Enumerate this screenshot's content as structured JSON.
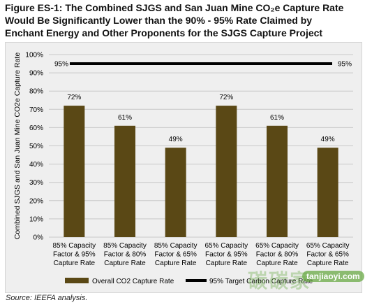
{
  "title_lines": [
    "Figure ES-1: The Combined SJGS and San Juan Mine CO₂e Capture Rate",
    "Would Be Significantly Lower than the 90% - 95% Rate Claimed by",
    "Enchant Energy and Other Proponents for the SJGS Capture Project"
  ],
  "source": "Source: IEEFA analysis.",
  "watermark": {
    "text": "碳碳家",
    "url": "tanjiaoyi.com"
  },
  "colors": {
    "bar": "#5a4815",
    "target_line": "#000000",
    "grid": "#c8c8c8",
    "background": "#efefef"
  },
  "chart_data": {
    "type": "bar",
    "categories": [
      [
        "85% Capacity",
        "Factor & 95%",
        "Capture Rate"
      ],
      [
        "85% Capacity",
        "Factor & 80%",
        "Capture Rate"
      ],
      [
        "85% Capacity",
        "Factor & 65%",
        "Capture Rate"
      ],
      [
        "65% Capacity",
        "Factor & 95%",
        "Capture Rate"
      ],
      [
        "65% Capacity",
        "Factor & 80%",
        "Capture Rate"
      ],
      [
        "65% Capacity",
        "Factor & 65%",
        "Capture Rate"
      ]
    ],
    "series": [
      {
        "name": "Overall CO2 Capture Rate",
        "values": [
          72,
          61,
          49,
          72,
          61,
          49
        ]
      }
    ],
    "data_labels": [
      "72%",
      "61%",
      "49%",
      "72%",
      "61%",
      "49%"
    ],
    "target_line": {
      "name": "95% Target Carbon Capture Rate",
      "value": 95,
      "left_label": "95%",
      "right_label": "95%"
    },
    "ylabel": "Combined SJGS and San Juan Mine CO2e Capture Rate",
    "yticks": [
      "0%",
      "10%",
      "20%",
      "30%",
      "40%",
      "50%",
      "60%",
      "70%",
      "80%",
      "90%",
      "100%"
    ],
    "ylim": [
      0,
      100
    ],
    "grid": true,
    "legend_position": "bottom"
  }
}
